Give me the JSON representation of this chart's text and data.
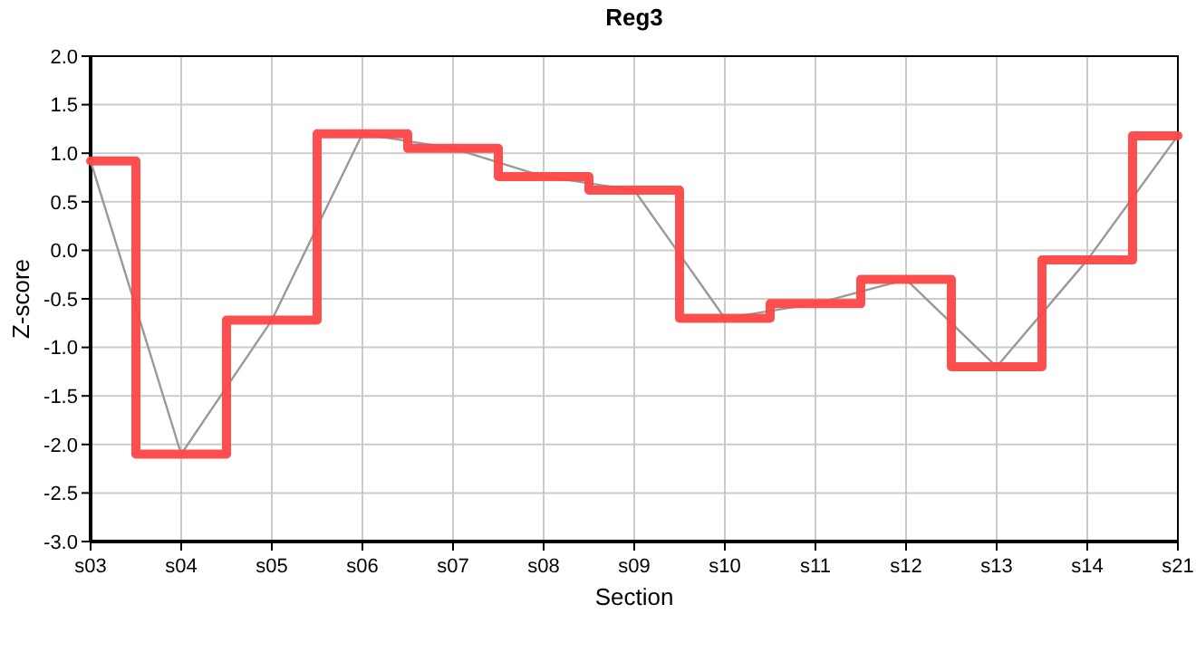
{
  "chart_data": {
    "type": "line",
    "title": "Reg3",
    "xlabel": "Section",
    "ylabel": "Z-score",
    "categories": [
      "s03",
      "s04",
      "s05",
      "s06",
      "s07",
      "s08",
      "s09",
      "s10",
      "s11",
      "s12",
      "s13",
      "s14",
      "s21"
    ],
    "series": [
      {
        "color": "#999999",
        "values": [
          0.92,
          -2.1,
          -0.72,
          1.2,
          1.05,
          0.76,
          0.62,
          -0.7,
          -0.55,
          -0.3,
          -1.2,
          -0.1,
          1.18
        ]
      },
      {
        "type": "step",
        "color": "#ff4444",
        "values": [
          0.92,
          -2.1,
          -0.72,
          1.2,
          1.05,
          0.76,
          0.62,
          -0.7,
          -0.55,
          -0.3,
          -1.2,
          -0.1,
          1.18
        ]
      }
    ],
    "ylim": [
      -3,
      2
    ],
    "yticks": [
      {
        "value": -3,
        "label": "-3.0"
      },
      {
        "value": -2.5,
        "label": "-2.5"
      },
      {
        "value": -2,
        "label": "-2.0"
      },
      {
        "value": -1.5,
        "label": "-1.5"
      },
      {
        "value": -1,
        "label": "-1.0"
      },
      {
        "value": -0.5,
        "label": "-0.5"
      },
      {
        "value": 0,
        "label": "0.0"
      },
      {
        "value": 0.5,
        "label": "0.5"
      },
      {
        "value": 1,
        "label": "1.0"
      },
      {
        "value": 1.5,
        "label": "1.5"
      },
      {
        "value": 2,
        "label": "2.0"
      }
    ],
    "grid": true,
    "marker": "none"
  }
}
